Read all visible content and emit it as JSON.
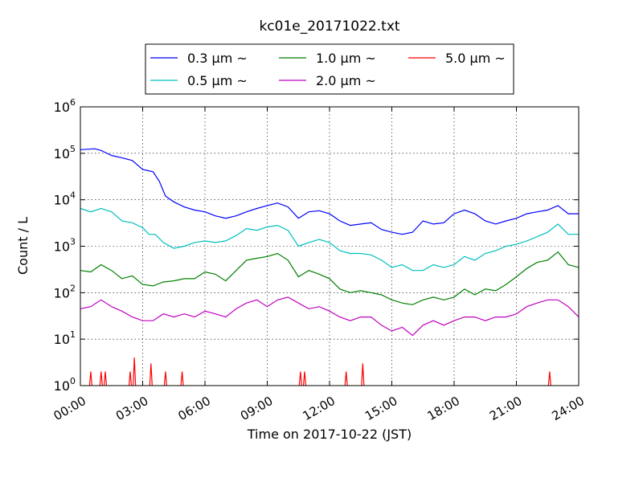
{
  "chart_data": {
    "type": "line",
    "title": "kc01e_20171022.txt",
    "xlabel": "Time on 2017-10-22 (JST)",
    "ylabel": "Count / L",
    "x_range_hours": [
      0,
      24
    ],
    "ylim": [
      1,
      1000000
    ],
    "y_scale": "log",
    "grid": true,
    "legend_placement": "top-center",
    "x_ticks": [
      "00:00",
      "03:00",
      "06:00",
      "09:00",
      "12:00",
      "15:00",
      "18:00",
      "21:00",
      "24:00"
    ],
    "y_ticks": [
      {
        "base": "10",
        "exp": "0"
      },
      {
        "base": "10",
        "exp": "1"
      },
      {
        "base": "10",
        "exp": "2"
      },
      {
        "base": "10",
        "exp": "3"
      },
      {
        "base": "10",
        "exp": "4"
      },
      {
        "base": "10",
        "exp": "5"
      },
      {
        "base": "10",
        "exp": "6"
      }
    ],
    "series": [
      {
        "name": "0.3 μm ~",
        "color": "#0000ff",
        "points": [
          [
            0,
            120000
          ],
          [
            0.7,
            125000
          ],
          [
            1,
            115000
          ],
          [
            1.5,
            90000
          ],
          [
            2,
            80000
          ],
          [
            2.5,
            70000
          ],
          [
            3,
            45000
          ],
          [
            3.5,
            40000
          ],
          [
            3.8,
            25000
          ],
          [
            4.1,
            12000
          ],
          [
            4.5,
            9000
          ],
          [
            5,
            7000
          ],
          [
            5.5,
            6000
          ],
          [
            6,
            5500
          ],
          [
            6.5,
            4500
          ],
          [
            7,
            4000
          ],
          [
            7.5,
            4500
          ],
          [
            8,
            5500
          ],
          [
            8.5,
            6500
          ],
          [
            9,
            7500
          ],
          [
            9.5,
            8500
          ],
          [
            10,
            7000
          ],
          [
            10.5,
            4000
          ],
          [
            11,
            5500
          ],
          [
            11.5,
            5800
          ],
          [
            12,
            5000
          ],
          [
            12.5,
            3500
          ],
          [
            13,
            2800
          ],
          [
            13.5,
            3000
          ],
          [
            14,
            3200
          ],
          [
            14.5,
            2300
          ],
          [
            15,
            2000
          ],
          [
            15.5,
            1800
          ],
          [
            16,
            2000
          ],
          [
            16.5,
            3500
          ],
          [
            17,
            3000
          ],
          [
            17.5,
            3200
          ],
          [
            18,
            5000
          ],
          [
            18.5,
            6000
          ],
          [
            19,
            5000
          ],
          [
            19.5,
            3500
          ],
          [
            20,
            3000
          ],
          [
            20.5,
            3500
          ],
          [
            21,
            4000
          ],
          [
            21.5,
            5000
          ],
          [
            22,
            5500
          ],
          [
            22.5,
            6000
          ],
          [
            23,
            7500
          ],
          [
            23.5,
            5000
          ],
          [
            24,
            5000
          ]
        ]
      },
      {
        "name": "0.5 μm ~",
        "color": "#00bfbf",
        "points": [
          [
            0,
            6500
          ],
          [
            0.5,
            5500
          ],
          [
            1,
            6500
          ],
          [
            1.5,
            5500
          ],
          [
            2,
            3500
          ],
          [
            2.5,
            3200
          ],
          [
            3,
            2500
          ],
          [
            3.3,
            1800
          ],
          [
            3.6,
            1800
          ],
          [
            4,
            1200
          ],
          [
            4.5,
            900
          ],
          [
            5,
            1000
          ],
          [
            5.5,
            1200
          ],
          [
            6,
            1300
          ],
          [
            6.5,
            1200
          ],
          [
            7,
            1300
          ],
          [
            7.5,
            1700
          ],
          [
            8,
            2400
          ],
          [
            8.5,
            2200
          ],
          [
            9,
            2600
          ],
          [
            9.5,
            2800
          ],
          [
            10,
            2200
          ],
          [
            10.5,
            1000
          ],
          [
            11,
            1200
          ],
          [
            11.5,
            1400
          ],
          [
            12,
            1200
          ],
          [
            12.5,
            800
          ],
          [
            13,
            700
          ],
          [
            13.5,
            700
          ],
          [
            14,
            650
          ],
          [
            14.5,
            500
          ],
          [
            15,
            350
          ],
          [
            15.5,
            400
          ],
          [
            16,
            300
          ],
          [
            16.5,
            300
          ],
          [
            17,
            400
          ],
          [
            17.5,
            350
          ],
          [
            18,
            400
          ],
          [
            18.5,
            600
          ],
          [
            19,
            500
          ],
          [
            19.5,
            700
          ],
          [
            20,
            800
          ],
          [
            20.5,
            1000
          ],
          [
            21,
            1100
          ],
          [
            21.5,
            1300
          ],
          [
            22,
            1600
          ],
          [
            22.5,
            2000
          ],
          [
            23,
            3000
          ],
          [
            23.5,
            1800
          ],
          [
            24,
            1800
          ]
        ]
      },
      {
        "name": "1.0 μm ~",
        "color": "#008000",
        "points": [
          [
            0,
            300
          ],
          [
            0.5,
            280
          ],
          [
            1,
            400
          ],
          [
            1.5,
            300
          ],
          [
            2,
            200
          ],
          [
            2.5,
            230
          ],
          [
            3,
            150
          ],
          [
            3.5,
            140
          ],
          [
            4,
            170
          ],
          [
            4.5,
            180
          ],
          [
            5,
            200
          ],
          [
            5.5,
            200
          ],
          [
            6,
            280
          ],
          [
            6.5,
            250
          ],
          [
            7,
            180
          ],
          [
            7.5,
            300
          ],
          [
            8,
            500
          ],
          [
            8.5,
            550
          ],
          [
            9,
            600
          ],
          [
            9.5,
            700
          ],
          [
            10,
            500
          ],
          [
            10.5,
            220
          ],
          [
            11,
            300
          ],
          [
            11.5,
            250
          ],
          [
            12,
            200
          ],
          [
            12.5,
            120
          ],
          [
            13,
            100
          ],
          [
            13.5,
            110
          ],
          [
            14,
            100
          ],
          [
            14.5,
            90
          ],
          [
            15,
            70
          ],
          [
            15.5,
            60
          ],
          [
            16,
            55
          ],
          [
            16.5,
            70
          ],
          [
            17,
            80
          ],
          [
            17.5,
            70
          ],
          [
            18,
            80
          ],
          [
            18.5,
            120
          ],
          [
            19,
            90
          ],
          [
            19.5,
            120
          ],
          [
            20,
            110
          ],
          [
            20.5,
            150
          ],
          [
            21,
            220
          ],
          [
            21.5,
            330
          ],
          [
            22,
            450
          ],
          [
            22.5,
            500
          ],
          [
            23,
            750
          ],
          [
            23.5,
            400
          ],
          [
            24,
            350
          ]
        ]
      },
      {
        "name": "2.0 μm ~",
        "color": "#bf00bf",
        "points": [
          [
            0,
            45
          ],
          [
            0.5,
            50
          ],
          [
            1,
            70
          ],
          [
            1.5,
            50
          ],
          [
            2,
            40
          ],
          [
            2.5,
            30
          ],
          [
            3,
            25
          ],
          [
            3.5,
            25
          ],
          [
            4,
            35
          ],
          [
            4.5,
            30
          ],
          [
            5,
            35
          ],
          [
            5.5,
            30
          ],
          [
            6,
            40
          ],
          [
            6.5,
            35
          ],
          [
            7,
            30
          ],
          [
            7.5,
            45
          ],
          [
            8,
            60
          ],
          [
            8.5,
            70
          ],
          [
            9,
            50
          ],
          [
            9.5,
            70
          ],
          [
            10,
            80
          ],
          [
            10.5,
            60
          ],
          [
            11,
            45
          ],
          [
            11.5,
            50
          ],
          [
            12,
            40
          ],
          [
            12.5,
            30
          ],
          [
            13,
            25
          ],
          [
            13.5,
            30
          ],
          [
            14,
            30
          ],
          [
            14.5,
            20
          ],
          [
            15,
            15
          ],
          [
            15.5,
            18
          ],
          [
            16,
            12
          ],
          [
            16.5,
            20
          ],
          [
            17,
            25
          ],
          [
            17.5,
            20
          ],
          [
            18,
            25
          ],
          [
            18.5,
            30
          ],
          [
            19,
            30
          ],
          [
            19.5,
            25
          ],
          [
            20,
            30
          ],
          [
            20.5,
            30
          ],
          [
            21,
            35
          ],
          [
            21.5,
            50
          ],
          [
            22,
            60
          ],
          [
            22.5,
            70
          ],
          [
            23,
            70
          ],
          [
            23.5,
            50
          ],
          [
            24,
            30
          ]
        ]
      },
      {
        "name": "5.0 μm ~",
        "color": "#ff0000",
        "spikes": [
          [
            0.5,
            2
          ],
          [
            1.0,
            2
          ],
          [
            1.2,
            2
          ],
          [
            2.4,
            2
          ],
          [
            2.6,
            4
          ],
          [
            3.4,
            3
          ],
          [
            4.1,
            2
          ],
          [
            4.9,
            2
          ],
          [
            10.6,
            2
          ],
          [
            10.8,
            2
          ],
          [
            12.8,
            2
          ],
          [
            13.6,
            3
          ],
          [
            22.6,
            2
          ]
        ]
      }
    ]
  }
}
